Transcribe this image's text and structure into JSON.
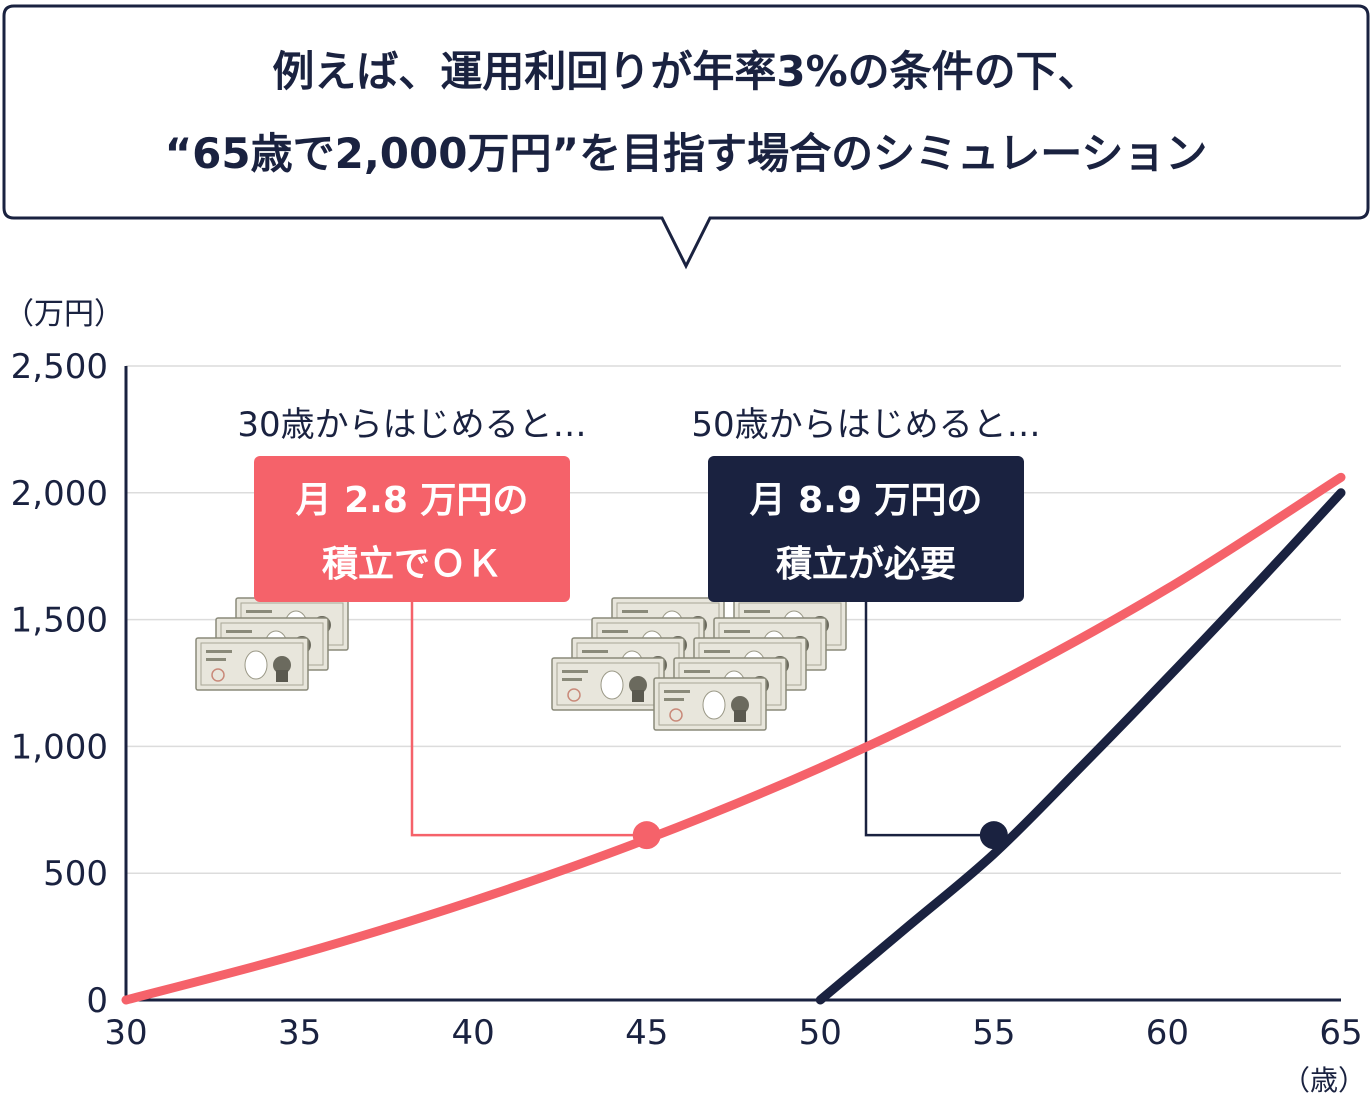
{
  "header": {
    "line1": "例えば、運用利回りが年率3%の条件の下、",
    "line2": "“65歳で2,000万円”を目指す場合のシミュレーション"
  },
  "colors": {
    "navy": "#1a2240",
    "coral": "#f5626a",
    "grid": "#dcdcdc",
    "note_bg": "#e8e6dc",
    "note_border": "#8a8a7a"
  },
  "chart_data": {
    "type": "line",
    "title": "",
    "ylabel": "（万円）",
    "xlabel": "（歳）",
    "xlim": [
      30,
      65
    ],
    "ylim": [
      0,
      2500
    ],
    "x_ticks": [
      "30",
      "35",
      "40",
      "45",
      "50",
      "55",
      "60",
      "65"
    ],
    "y_ticks": [
      "0",
      "500",
      "1,000",
      "1,500",
      "2,000",
      "2,500"
    ],
    "grid": true,
    "series": [
      {
        "color": "#f5626a",
        "x": [
          30,
          35,
          40,
          45,
          50,
          55,
          60,
          65
        ],
        "y": [
          0,
          181,
          391,
          634,
          916,
          1243,
          1622,
          2061
        ]
      },
      {
        "color": "#1a2240",
        "x": [
          50,
          52.5,
          55,
          57.5,
          60,
          62.5,
          65
        ],
        "y": [
          0,
          287,
          576,
          918,
          1270,
          1630,
          2000
        ]
      }
    ],
    "markers": [
      {
        "series": 0,
        "x": 45,
        "y": 650
      },
      {
        "series": 1,
        "x": 55,
        "y": 650
      }
    ],
    "annotations": [
      {
        "caption": "30歳からはじめると…",
        "box_line1": "月 2.8 万円の",
        "box_line2": "積立でＯＫ",
        "box_color": "#f5626a"
      },
      {
        "caption": "50歳からはじめると…",
        "box_line1": "月 8.9 万円の",
        "box_line2": "積立が必要",
        "box_color": "#1a2240"
      }
    ]
  }
}
